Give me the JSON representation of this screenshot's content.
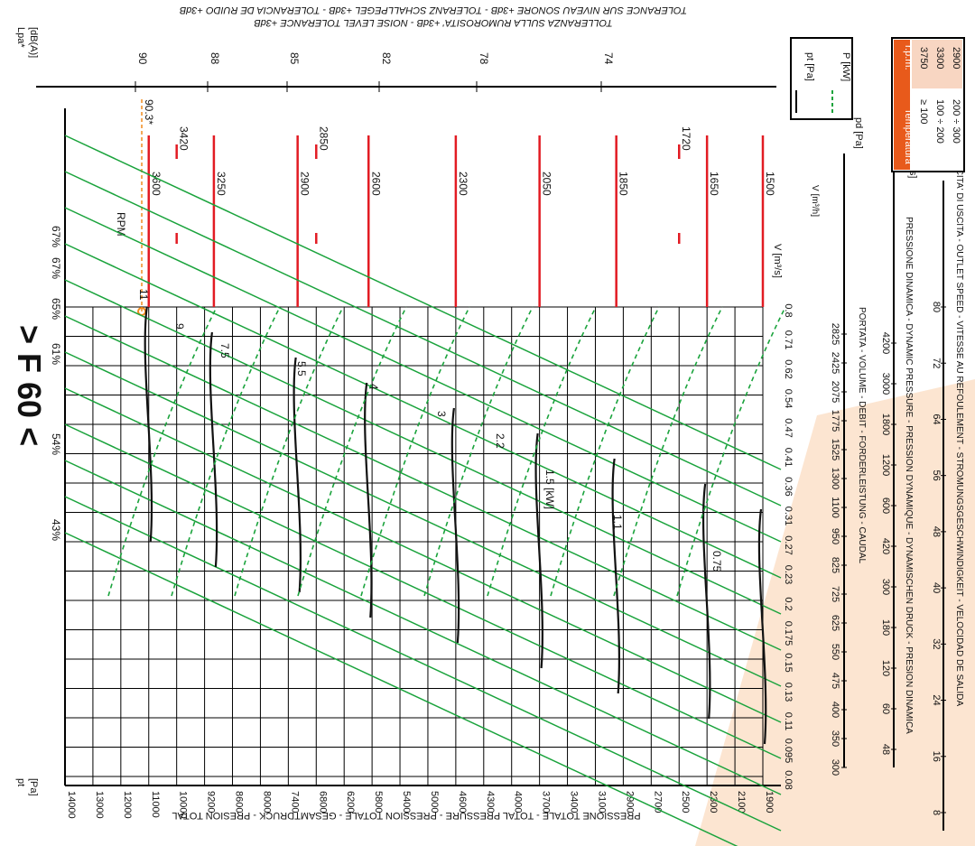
{
  "top_titles": {
    "line1": "TOLERANCE SUR NIVEAU SONORE +3dB - TOLERANZ SCHALLPEGEL +3dB - TOLERANCIA DE RUIDO +3dB",
    "line2": "TOLLERANZA SULLA RUMOROSITA' +3dB - NOISE LEVEL TOLERANCE +3dB"
  },
  "model_label": "> F 60 <",
  "chart_data": {
    "type": "line",
    "title": "",
    "pt_axis": {
      "label": "pt",
      "unit": "[Pa]",
      "title": "PRESSIONE TOTALE - TOTAL PRESSURE - PRESSION TOTALE - GESAMTDRUCK - PRESION TOTAL",
      "ticks": [
        "1900",
        "2100",
        "2300",
        "2500",
        "2700",
        "2900",
        "3100",
        "3400",
        "3700",
        "4000",
        "4300",
        "4600",
        "5000",
        "5400",
        "5800",
        "6200",
        "6800",
        "7400",
        "8000",
        "8600",
        "9200",
        "10000",
        "11000",
        "12000",
        "13000",
        "14000"
      ]
    },
    "flow_axis": {
      "label": "V [m³/s]",
      "ticks": [
        "0.08",
        "0.095",
        "0.11",
        "0.13",
        "0.15",
        "0.175",
        "0.2",
        "0.23",
        "0.27",
        "0.31",
        "0.36",
        "0.41",
        "0.47",
        "0.54",
        "0.62",
        "0.71",
        "0.8"
      ]
    },
    "flow_m3h_axis": {
      "label": "V [m³/h]",
      "title": "PORTATA - VOLUME - DEBIT - FORDERLEISTUNG - CAUDAL",
      "ticks": [
        "300",
        "350",
        "400",
        "475",
        "550",
        "625",
        "725",
        "825",
        "950",
        "1100",
        "1300",
        "1525",
        "1775",
        "2075",
        "2425",
        "2825"
      ]
    },
    "pd_axis": {
      "label": "pd [Pa]",
      "title": "PRESSIONE DINAMICA - DYNAMIC PRESSURE - PRESSION DYNAMIQUE - DYNAMISCHEN DRUCK - PRESION DINAMICA",
      "ticks": [
        "48",
        "60",
        "120",
        "180",
        "300",
        "420",
        "600",
        "1200",
        "1800",
        "3000",
        "4200"
      ]
    },
    "v_axis": {
      "label": "v [m/s]",
      "title": "VELOCITA' DI USCITA - OUTLET SPEED - VITESSE AU REFOULEMENT - STROMUNGSGESCHWINDIGKEIT - VELOCIDAD DE SALIDA",
      "ticks": [
        "8",
        "16",
        "24",
        "32",
        "40",
        "48",
        "56",
        "64",
        "72",
        "80"
      ]
    },
    "noise_axis": {
      "label": "Lpa*",
      "unit": "[dB(A)]",
      "ticks": [
        "90",
        "88",
        "85",
        "82",
        "78",
        "74"
      ]
    },
    "rpm_label": "RPM",
    "rpm_values": [
      3600,
      3250,
      2900,
      2600,
      2300,
      2050,
      1850,
      1650,
      1500
    ],
    "rpm_pressure": [
      11000,
      9000,
      7200,
      5850,
      4600,
      3700,
      2950,
      2300,
      1900
    ],
    "rpm_extra": [
      "3420",
      "2850",
      "1720"
    ],
    "noise_marker": "90.3*",
    "efficiency_labels": [
      "43%",
      "54%",
      "61%",
      "65%",
      "67%",
      "67%"
    ],
    "power_labels": [
      "11",
      "9",
      "7.5",
      "5.5",
      "4",
      "3",
      "2.2",
      "1.5 [kW]",
      "1.1",
      "0.75"
    ],
    "legend": {
      "pt": "pt [Pa]",
      "p": "P [kW]"
    },
    "temperature_table": {
      "headers": [
        "Temperatura",
        "r.p.m."
      ],
      "rows": [
        [
          "≥ 100",
          "3750"
        ],
        [
          "100 ÷ 200",
          "3300"
        ],
        [
          "200 ÷ 300",
          "2900"
        ]
      ]
    },
    "colors": {
      "grid": "#000000",
      "rpm": "#e21b23",
      "power": "#1aa33c",
      "efficiency": "#1aa33c",
      "noise_marker": "#f08a1c",
      "table_header": "#e85a1b",
      "table_fill": "#f8d6c2",
      "watermark": "#f6b57a"
    }
  }
}
